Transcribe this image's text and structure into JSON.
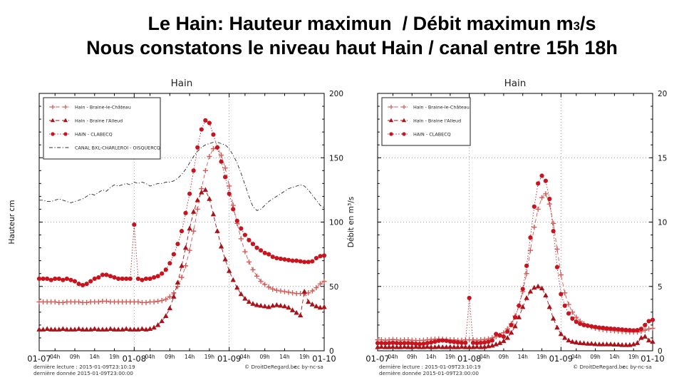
{
  "slide_title": {
    "line1": "Le Hain: Hauteur maximun  / Débit maximun m",
    "line1_sub": "3",
    "line1_end": "/s",
    "line2": "Nous constatons le niveau haut Hain / canal entre 15h 18h"
  },
  "footer": {
    "line1": "dernière lecture : 2015-01-09T23:10:19",
    "line2": "dernière donnée  2015-01-09T23:00:00",
    "copyright": "© DroitDeRegard.be",
    "license": "cc by-nc-sa"
  },
  "chart_data": [
    {
      "type": "line",
      "title": "Hain",
      "ylabel": "Hauteur cm",
      "ylim": [
        0,
        200
      ],
      "yticks": [
        0,
        50,
        100,
        150,
        200
      ],
      "y_minor_step": 10,
      "grid_y": [
        50,
        100,
        150
      ],
      "grid_x_hours": [
        24,
        48
      ],
      "x_hours_range": [
        0,
        72
      ],
      "x_unit": "hours from 2015-01-07 00:00",
      "legend_position": "upper left",
      "xticks": [
        {
          "h": 0,
          "label": "01-07",
          "major": true
        },
        {
          "h": 4,
          "label": "04h",
          "major": false
        },
        {
          "h": 9,
          "label": "09h",
          "major": false
        },
        {
          "h": 14,
          "label": "14h",
          "major": false
        },
        {
          "h": 19,
          "label": "19h",
          "major": false
        },
        {
          "h": 24,
          "label": "01-08",
          "major": true
        },
        {
          "h": 28,
          "label": "04h",
          "major": false
        },
        {
          "h": 33,
          "label": "09h",
          "major": false
        },
        {
          "h": 38,
          "label": "14h",
          "major": false
        },
        {
          "h": 43,
          "label": "19h",
          "major": false
        },
        {
          "h": 48,
          "label": "01-09",
          "major": true
        },
        {
          "h": 52,
          "label": "04h",
          "major": false
        },
        {
          "h": 57,
          "label": "09h",
          "major": false
        },
        {
          "h": 62,
          "label": "14h",
          "major": false
        },
        {
          "h": 67,
          "label": "19h",
          "major": false
        },
        {
          "h": 72,
          "label": "01-10",
          "major": true
        }
      ],
      "series": [
        {
          "name": "Hain - Braine-le-Château",
          "color": "#d45a55",
          "marker": "plus",
          "line": "dashed",
          "values": [
            38,
            38,
            38,
            38,
            38,
            37.5,
            37.5,
            38,
            38,
            38,
            38,
            37.5,
            37.5,
            38,
            38,
            38,
            38.5,
            38.5,
            38,
            38,
            38,
            38,
            38,
            38,
            38,
            38,
            37.5,
            37.5,
            38,
            38,
            38.5,
            39,
            40,
            42,
            45,
            50,
            57,
            66,
            78,
            93,
            110,
            126,
            140,
            151,
            157,
            158,
            152,
            142,
            128,
            113,
            99,
            87,
            77,
            69,
            63,
            58,
            54,
            51.5,
            49.5,
            48,
            47,
            46.5,
            46,
            45.5,
            45,
            44.5,
            44.5,
            44.5,
            45,
            46.5,
            49,
            52,
            54
          ]
        },
        {
          "name": "Hain - Braine l'Alleud",
          "color": "#a81218",
          "marker": "triangle",
          "line": "dashed",
          "values": [
            16.5,
            16.5,
            17,
            16.5,
            16.5,
            16.5,
            17,
            16.5,
            16.5,
            16.5,
            17,
            16.5,
            16.5,
            16.5,
            17,
            16.5,
            16.5,
            16.5,
            17,
            16.5,
            16.5,
            16.5,
            17,
            16.5,
            16.5,
            16.5,
            17,
            16.5,
            17,
            18,
            20,
            23,
            27,
            33,
            42,
            53,
            66,
            80,
            95,
            108,
            117,
            123,
            125,
            118,
            106,
            93,
            81,
            71,
            62,
            55,
            49,
            44,
            40.5,
            38,
            36.5,
            35.5,
            35,
            34.5,
            34,
            35,
            35.5,
            35,
            34.5,
            33.5,
            31.5,
            29.5,
            27.5,
            46,
            38,
            36,
            34.5,
            33.5,
            34
          ]
        },
        {
          "name": "HAIN - CLABECQ",
          "color": "#c8141e",
          "marker": "circle",
          "line": "dotted",
          "values": [
            56,
            56,
            56,
            55,
            56,
            56,
            55,
            56,
            55,
            54,
            52,
            51,
            52,
            54,
            56,
            57,
            59,
            59,
            58,
            57,
            56,
            56,
            56,
            56,
            98,
            56,
            55,
            56,
            56,
            57,
            58,
            60,
            63,
            68,
            75,
            83,
            93,
            107,
            122,
            140,
            158,
            172,
            179,
            177,
            168,
            158,
            147,
            135,
            122,
            110,
            101,
            95,
            90,
            86,
            83,
            80,
            78,
            76,
            75,
            73,
            72,
            71.5,
            71,
            70.5,
            70,
            70,
            69.5,
            69,
            69,
            69.5,
            72,
            73.5,
            74
          ]
        },
        {
          "name": "CANAL BXL-CHARLEROI - OISQUERCQ",
          "color": "#2b2b2b",
          "marker": "none",
          "line": "dashdot",
          "values": [
            117,
            117,
            116,
            116,
            117,
            118,
            117,
            116,
            115,
            116,
            117,
            118,
            120,
            122,
            121,
            123,
            125,
            124,
            127,
            129,
            128,
            129,
            130,
            129,
            131,
            130,
            131,
            130,
            128,
            129,
            130,
            130,
            131,
            131,
            132,
            134,
            137,
            141,
            146,
            151,
            155,
            158,
            160,
            161,
            162,
            162,
            161,
            160,
            157,
            152,
            146,
            138,
            129,
            120,
            112,
            109,
            110,
            113,
            116,
            118,
            120,
            122,
            124,
            126,
            127,
            128,
            129,
            128,
            125,
            121,
            117,
            113,
            111
          ]
        }
      ]
    },
    {
      "type": "line",
      "title": "Hain",
      "ylabel": "Débit en m³/s",
      "ylim": [
        0,
        20
      ],
      "yticks": [
        0,
        5,
        10,
        15,
        20
      ],
      "y_minor_step": 1,
      "grid_y": [
        5,
        10,
        15
      ],
      "grid_x_hours": [
        24,
        48
      ],
      "x_hours_range": [
        0,
        72
      ],
      "x_unit": "hours from 2015-01-07 00:00",
      "legend_position": "upper left",
      "xticks": [
        {
          "h": 0,
          "label": "01-07",
          "major": true
        },
        {
          "h": 4,
          "label": "04h",
          "major": false
        },
        {
          "h": 9,
          "label": "09h",
          "major": false
        },
        {
          "h": 14,
          "label": "14h",
          "major": false
        },
        {
          "h": 19,
          "label": "19h",
          "major": false
        },
        {
          "h": 24,
          "label": "01-08",
          "major": true
        },
        {
          "h": 28,
          "label": "04h",
          "major": false
        },
        {
          "h": 33,
          "label": "09h",
          "major": false
        },
        {
          "h": 38,
          "label": "14h",
          "major": false
        },
        {
          "h": 43,
          "label": "19h",
          "major": false
        },
        {
          "h": 48,
          "label": "01-09",
          "major": true
        },
        {
          "h": 52,
          "label": "04h",
          "major": false
        },
        {
          "h": 57,
          "label": "09h",
          "major": false
        },
        {
          "h": 62,
          "label": "14h",
          "major": false
        },
        {
          "h": 67,
          "label": "19h",
          "major": false
        },
        {
          "h": 72,
          "label": "01-10",
          "major": true
        }
      ],
      "series": [
        {
          "name": "Hain - Braine-le-Château",
          "color": "#d45a55",
          "marker": "plus",
          "line": "dashed",
          "values": [
            0.85,
            0.85,
            0.82,
            0.85,
            0.88,
            0.85,
            0.82,
            0.85,
            0.85,
            0.82,
            0.8,
            0.8,
            0.82,
            0.85,
            0.88,
            0.9,
            0.92,
            0.9,
            0.88,
            0.85,
            0.85,
            0.82,
            0.82,
            0.85,
            0.85,
            0.85,
            0.82,
            0.85,
            0.88,
            0.92,
            1.0,
            1.1,
            1.2,
            1.4,
            1.7,
            2.1,
            2.7,
            3.5,
            4.6,
            6.0,
            7.8,
            9.6,
            11.0,
            11.9,
            12.2,
            11.4,
            9.9,
            7.9,
            5.9,
            4.5,
            3.6,
            3.0,
            2.6,
            2.3,
            2.1,
            1.95,
            1.85,
            1.75,
            1.7,
            1.65,
            1.6,
            1.58,
            1.55,
            1.52,
            1.5,
            1.48,
            1.45,
            1.45,
            1.45,
            1.5,
            1.6,
            1.7,
            1.75
          ]
        },
        {
          "name": "Hain - Braine l'Alleud",
          "color": "#a81218",
          "marker": "triangle",
          "line": "dashed",
          "values": [
            0.28,
            0.3,
            0.28,
            0.28,
            0.3,
            0.28,
            0.28,
            0.3,
            0.28,
            0.28,
            0.3,
            0.28,
            0.28,
            0.3,
            0.28,
            0.28,
            0.3,
            0.28,
            0.28,
            0.3,
            0.28,
            0.28,
            0.3,
            0.28,
            0.28,
            0.28,
            0.3,
            0.28,
            0.3,
            0.35,
            0.4,
            0.5,
            0.6,
            0.75,
            1.0,
            1.4,
            1.9,
            2.6,
            3.4,
            4.1,
            4.6,
            4.9,
            5.0,
            4.85,
            4.3,
            3.4,
            2.5,
            1.8,
            1.3,
            1.0,
            0.8,
            0.7,
            0.65,
            0.6,
            0.58,
            0.55,
            0.55,
            0.52,
            0.5,
            0.5,
            0.5,
            0.5,
            0.48,
            0.48,
            0.45,
            0.45,
            0.45,
            0.5,
            0.6,
            1.0,
            1.1,
            0.8,
            0.7
          ]
        },
        {
          "name": "HAIN - CLABECQ",
          "color": "#c8141e",
          "marker": "circle",
          "line": "dotted",
          "values": [
            0.6,
            0.6,
            0.58,
            0.6,
            0.62,
            0.6,
            0.58,
            0.6,
            0.6,
            0.58,
            0.55,
            0.52,
            0.55,
            0.6,
            0.65,
            0.7,
            0.78,
            0.8,
            0.78,
            0.72,
            0.68,
            0.65,
            0.62,
            0.62,
            4.1,
            0.62,
            0.6,
            0.62,
            0.65,
            0.7,
            0.8,
            1.3,
            1.2,
            1.1,
            1.5,
            2.0,
            2.6,
            3.5,
            4.8,
            6.6,
            8.8,
            11.2,
            13.0,
            13.6,
            13.2,
            11.8,
            9.3,
            6.5,
            4.4,
            3.5,
            2.9,
            2.5,
            2.25,
            2.1,
            2.0,
            1.95,
            1.9,
            1.85,
            1.8,
            1.78,
            1.75,
            1.72,
            1.7,
            1.68,
            1.65,
            1.62,
            1.6,
            1.58,
            1.6,
            1.7,
            2.0,
            2.3,
            2.4
          ]
        }
      ]
    }
  ]
}
